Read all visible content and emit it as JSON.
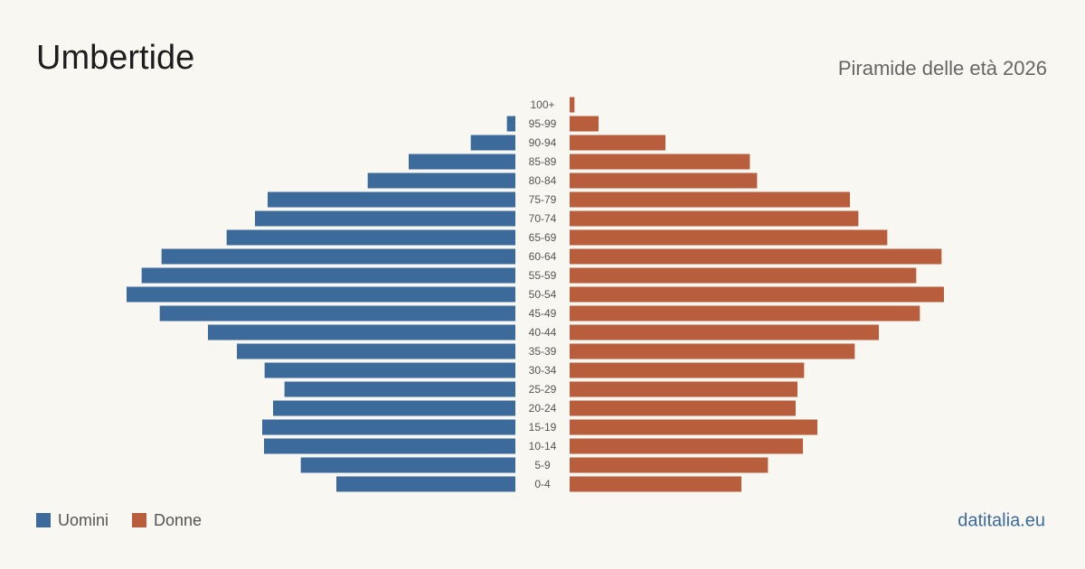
{
  "chart_data": {
    "type": "pyramid",
    "title": "Umbertide",
    "subtitle": "Piramide delle età 2026",
    "source": "datitalia.eu",
    "categories": [
      "0-4",
      "5-9",
      "10-14",
      "15-19",
      "20-24",
      "25-29",
      "30-34",
      "35-39",
      "40-44",
      "45-49",
      "50-54",
      "55-59",
      "60-64",
      "65-69",
      "70-74",
      "75-79",
      "80-84",
      "85-89",
      "90-94",
      "95-99",
      "100+"
    ],
    "series": [
      {
        "name": "Uomini",
        "color": "#3b6a9b",
        "values": [
          297,
          356,
          417,
          420,
          402,
          383,
          416,
          462,
          510,
          590,
          645,
          620,
          587,
          479,
          432,
          411,
          245,
          177,
          74,
          14,
          0
        ]
      },
      {
        "name": "Donne",
        "color": "#b95e3c",
        "values": [
          285,
          329,
          387,
          411,
          375,
          378,
          389,
          473,
          513,
          581,
          621,
          575,
          617,
          527,
          479,
          465,
          311,
          299,
          159,
          48,
          8
        ]
      }
    ],
    "xlim": [
      0,
      660
    ]
  }
}
